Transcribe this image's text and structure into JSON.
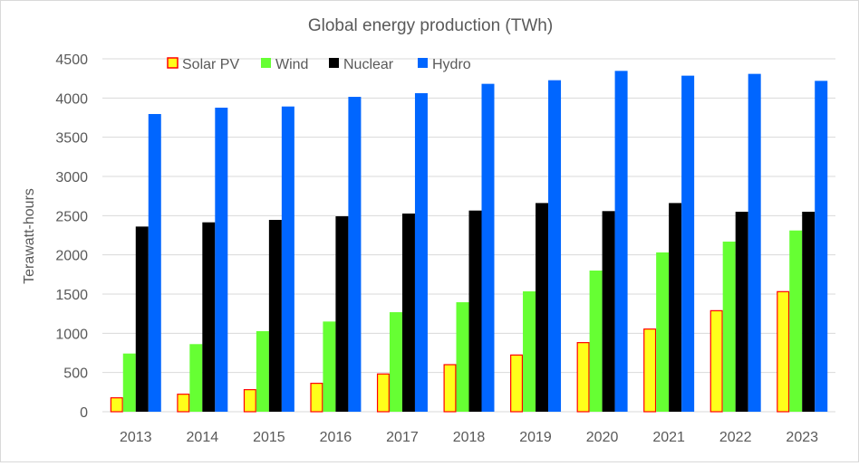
{
  "chart_data": {
    "type": "bar",
    "title": "Global energy production (TWh)",
    "xlabel": "",
    "ylabel": "Terawatt-hours",
    "ylim": [
      0,
      4500
    ],
    "yticks": [
      0,
      500,
      1000,
      1500,
      2000,
      2500,
      3000,
      3500,
      4000,
      4500
    ],
    "grid": true,
    "legend_position": "top",
    "categories": [
      "2013",
      "2014",
      "2015",
      "2016",
      "2017",
      "2018",
      "2019",
      "2020",
      "2021",
      "2022",
      "2023"
    ],
    "series": [
      {
        "name": "Solar PV",
        "color": "#ffff1a",
        "edge": "#ff0000",
        "values": [
          177,
          223,
          281,
          362,
          481,
          600,
          723,
          881,
          1054,
          1288,
          1531
        ]
      },
      {
        "name": "Wind",
        "color": "#66ff33",
        "values": [
          742,
          862,
          1027,
          1150,
          1269,
          1396,
          1535,
          1800,
          2031,
          2169,
          2311
        ]
      },
      {
        "name": "Nuclear",
        "color": "#000000",
        "values": [
          2361,
          2415,
          2446,
          2492,
          2527,
          2565,
          2661,
          2558,
          2661,
          2550,
          2550
        ]
      },
      {
        "name": "Hydro",
        "color": "#0066ff",
        "values": [
          3796,
          3877,
          3892,
          4015,
          4062,
          4181,
          4227,
          4346,
          4285,
          4308,
          4219
        ]
      }
    ]
  }
}
